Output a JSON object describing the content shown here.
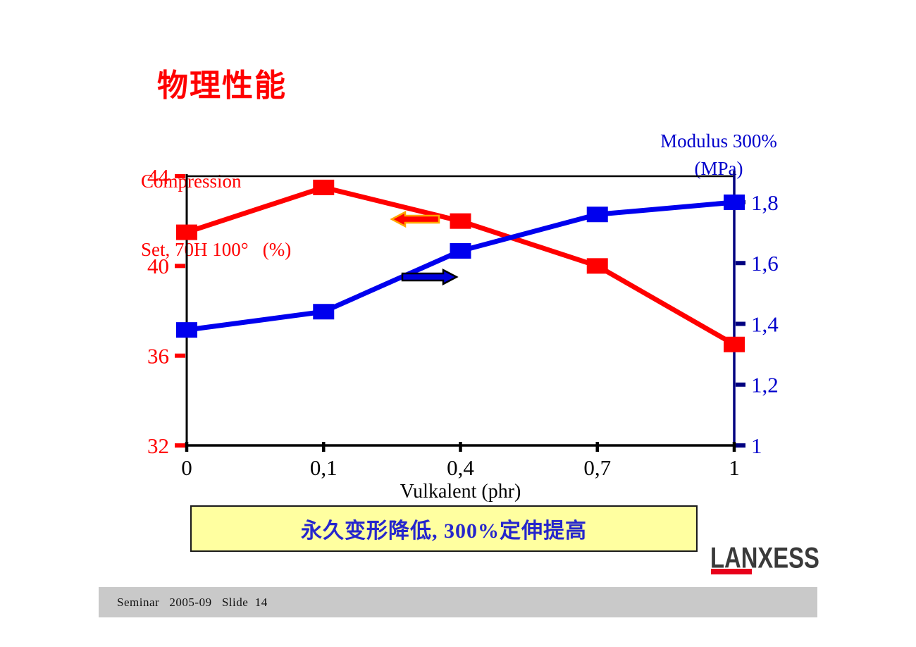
{
  "slide": {
    "title": "物理性能",
    "callout_text": "永久变形降低, 300%定伸提高",
    "logo_text": "LANXESS",
    "footer_text": "Seminar   2005-09   Slide  14"
  },
  "chart_data": {
    "type": "line",
    "x_categories": [
      "0",
      "0,1",
      "0,4",
      "0,7",
      "1"
    ],
    "xlabel": "Vulkalent (phr)",
    "frame_color": "#000000",
    "grid": false,
    "left_axis": {
      "title_lines": [
        "Compression",
        "Set, 70H 100°   (%)"
      ],
      "tick_labels": [
        "44",
        "40",
        "36",
        "32"
      ],
      "tick_values": [
        44,
        40,
        36,
        32
      ],
      "min": 32,
      "max": 44,
      "color": "#ff0000"
    },
    "right_axis": {
      "title_lines": [
        "Modulus 300%",
        "(MPa)"
      ],
      "tick_labels": [
        "1,8",
        "1,6",
        "1,4",
        "1,2",
        "1"
      ],
      "tick_values": [
        1.8,
        1.6,
        1.4,
        1.2,
        1
      ],
      "min": 1,
      "max": 1.8,
      "color": "#0000cc",
      "line_color": "#000080"
    },
    "series": [
      {
        "name": "Compression Set, 70H 100° (%)",
        "axis": "left",
        "color": "#ff0000",
        "marker": "square",
        "values": [
          41.5,
          43.5,
          42.0,
          40.0,
          36.5
        ]
      },
      {
        "name": "Modulus 300% (MPa)",
        "axis": "right",
        "color": "#0000ee",
        "marker": "square",
        "values": [
          1.38,
          1.44,
          1.64,
          1.76,
          1.8
        ]
      }
    ],
    "annotations": [
      {
        "type": "arrow",
        "direction": "left",
        "fill": "#ff0000",
        "outline": "#ffa500"
      },
      {
        "type": "arrow",
        "direction": "right",
        "fill": "#0000dd",
        "outline": "#000000"
      }
    ]
  }
}
